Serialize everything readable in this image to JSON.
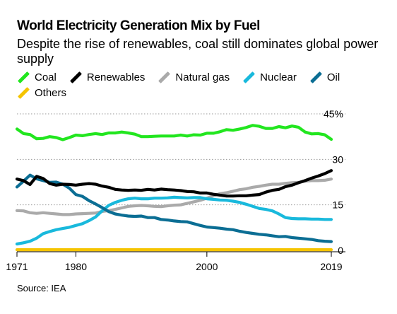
{
  "header": {
    "title": "World Electricity Generation Mix by Fuel",
    "subtitle": "Despite the rise of renewables, coal still dominates global power supply"
  },
  "legend": [
    {
      "name": "Coal",
      "color": "#22e61f"
    },
    {
      "name": "Renewables",
      "color": "#000000"
    },
    {
      "name": "Natural gas",
      "color": "#aaaaaa"
    },
    {
      "name": "Nuclear",
      "color": "#19b9dc"
    },
    {
      "name": "Oil",
      "color": "#0b6e94"
    },
    {
      "name": "Others",
      "color": "#f5c400"
    }
  ],
  "source": "Source: IEA",
  "chart_data": {
    "type": "line",
    "title": "World Electricity Generation Mix by Fuel",
    "subtitle": "Despite the rise of renewables, coal still dominates global power supply",
    "xlabel": "",
    "ylabel": "",
    "xlim": [
      1971,
      2019
    ],
    "ylim": [
      0,
      45
    ],
    "x_ticks": [
      "1971",
      "1980",
      "2000",
      "2019"
    ],
    "y_ticks": [
      "0",
      "15",
      "30",
      "45%"
    ],
    "y_tick_values": [
      0,
      15,
      30,
      45
    ],
    "grid": "horizontal dotted",
    "legend_position": "top-left",
    "x": [
      1971,
      1972,
      1973,
      1974,
      1975,
      1976,
      1977,
      1978,
      1979,
      1980,
      1981,
      1982,
      1983,
      1984,
      1985,
      1986,
      1987,
      1988,
      1989,
      1990,
      1991,
      1992,
      1993,
      1994,
      1995,
      1996,
      1997,
      1998,
      1999,
      2000,
      2001,
      2002,
      2003,
      2004,
      2005,
      2006,
      2007,
      2008,
      2009,
      2010,
      2011,
      2012,
      2013,
      2014,
      2015,
      2016,
      2017,
      2018,
      2019
    ],
    "series": [
      {
        "name": "Coal",
        "color": "#22e61f",
        "values": [
          40.0,
          38.5,
          38.2,
          36.8,
          36.9,
          37.5,
          37.2,
          36.5,
          37.2,
          38.0,
          37.8,
          38.2,
          38.5,
          38.2,
          38.7,
          38.7,
          39.0,
          38.7,
          38.3,
          37.5,
          37.5,
          37.6,
          37.7,
          37.7,
          37.7,
          38.0,
          37.7,
          38.1,
          38.0,
          38.6,
          38.6,
          39.1,
          39.8,
          39.6,
          40.0,
          40.5,
          41.2,
          40.9,
          40.2,
          40.2,
          40.8,
          40.4,
          41.0,
          40.6,
          39.0,
          38.4,
          38.5,
          38.1,
          36.6
        ]
      },
      {
        "name": "Renewables",
        "color": "#000000",
        "values": [
          23.5,
          23.0,
          21.7,
          24.4,
          23.7,
          22.0,
          21.5,
          21.8,
          21.7,
          21.5,
          21.8,
          22.0,
          21.8,
          21.2,
          20.8,
          20.1,
          19.9,
          19.8,
          19.9,
          19.8,
          20.1,
          19.9,
          20.2,
          20.0,
          19.9,
          19.7,
          19.4,
          19.3,
          18.9,
          18.9,
          18.5,
          18.2,
          17.9,
          17.9,
          18.0,
          18.0,
          18.2,
          18.4,
          19.2,
          19.8,
          20.1,
          21.0,
          21.5,
          22.3,
          23.0,
          23.8,
          24.5,
          25.3,
          26.3
        ]
      },
      {
        "name": "Natural gas",
        "color": "#aaaaaa",
        "values": [
          13.1,
          13.0,
          12.4,
          12.2,
          12.4,
          12.2,
          12.0,
          11.8,
          11.8,
          12.0,
          12.1,
          12.2,
          12.3,
          12.8,
          13.1,
          13.5,
          14.0,
          14.5,
          14.7,
          14.8,
          14.7,
          14.5,
          14.4,
          14.7,
          14.9,
          15.0,
          15.5,
          16.0,
          16.5,
          17.2,
          18.0,
          18.7,
          19.0,
          19.5,
          20.0,
          20.3,
          20.8,
          21.1,
          21.5,
          21.8,
          21.8,
          22.1,
          22.3,
          22.4,
          22.8,
          23.0,
          23.0,
          23.1,
          23.5
        ]
      },
      {
        "name": "Nuclear",
        "color": "#19b9dc",
        "values": [
          2.1,
          2.5,
          3.0,
          4.0,
          5.5,
          6.2,
          6.8,
          7.2,
          7.6,
          8.2,
          8.8,
          9.8,
          11.0,
          13.0,
          14.8,
          15.8,
          16.5,
          17.0,
          17.2,
          17.0,
          17.0,
          17.2,
          17.2,
          17.3,
          17.5,
          17.4,
          17.3,
          17.4,
          17.4,
          17.0,
          16.8,
          16.6,
          16.5,
          16.2,
          15.8,
          15.2,
          14.5,
          13.8,
          13.5,
          13.0,
          12.0,
          10.8,
          10.5,
          10.4,
          10.4,
          10.3,
          10.3,
          10.2,
          10.2
        ]
      },
      {
        "name": "Oil",
        "color": "#0b6e94",
        "values": [
          20.9,
          22.8,
          24.8,
          23.6,
          23.0,
          22.4,
          22.5,
          21.8,
          20.5,
          18.4,
          17.8,
          16.4,
          15.3,
          14.1,
          12.8,
          12.0,
          11.6,
          11.3,
          11.2,
          11.3,
          10.8,
          10.8,
          10.2,
          10.0,
          9.7,
          9.5,
          9.4,
          8.8,
          8.2,
          7.7,
          7.5,
          7.3,
          7.0,
          6.8,
          6.3,
          5.9,
          5.6,
          5.3,
          5.1,
          4.8,
          4.5,
          4.6,
          4.2,
          4.0,
          3.8,
          3.6,
          3.2,
          3.0,
          2.9
        ]
      },
      {
        "name": "Others",
        "color": "#f5c400",
        "values": [
          0.2,
          0.2,
          0.2,
          0.2,
          0.2,
          0.2,
          0.2,
          0.2,
          0.2,
          0.2,
          0.2,
          0.2,
          0.2,
          0.2,
          0.2,
          0.2,
          0.2,
          0.2,
          0.2,
          0.2,
          0.2,
          0.2,
          0.2,
          0.2,
          0.2,
          0.2,
          0.2,
          0.2,
          0.2,
          0.2,
          0.2,
          0.2,
          0.2,
          0.2,
          0.2,
          0.2,
          0.2,
          0.2,
          0.2,
          0.2,
          0.2,
          0.2,
          0.2,
          0.2,
          0.2,
          0.2,
          0.2,
          0.2,
          0.2
        ]
      }
    ]
  }
}
